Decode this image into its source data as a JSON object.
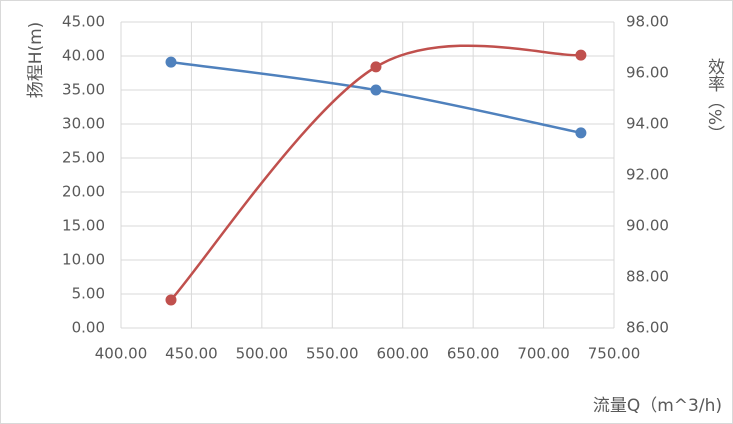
{
  "chart_data": {
    "type": "scatter",
    "xlabel": "流量Q（m^3/h)",
    "ylabel": "扬程H(m)",
    "y2label": "效率（%）",
    "xlim": [
      400,
      750
    ],
    "xticks": [
      {
        "value": 400,
        "label": "400.00"
      },
      {
        "value": 450,
        "label": "450.00"
      },
      {
        "value": 500,
        "label": "500.00"
      },
      {
        "value": 550,
        "label": "550.00"
      },
      {
        "value": 600,
        "label": "600.00"
      },
      {
        "value": 650,
        "label": "650.00"
      },
      {
        "value": 700,
        "label": "700.00"
      },
      {
        "value": 750,
        "label": "750.00"
      }
    ],
    "ylim": [
      0,
      45
    ],
    "yticks": [
      {
        "value": 0,
        "label": "0.00"
      },
      {
        "value": 5,
        "label": "5.00"
      },
      {
        "value": 10,
        "label": "10.00"
      },
      {
        "value": 15,
        "label": "15.00"
      },
      {
        "value": 20,
        "label": "20.00"
      },
      {
        "value": 25,
        "label": "25.00"
      },
      {
        "value": 30,
        "label": "30.00"
      },
      {
        "value": 35,
        "label": "35.00"
      },
      {
        "value": 40,
        "label": "40.00"
      },
      {
        "value": 45,
        "label": "45.00"
      }
    ],
    "y2lim": [
      86,
      98
    ],
    "y2ticks": [
      {
        "value": 86,
        "label": "86.00"
      },
      {
        "value": 88,
        "label": "88.00"
      },
      {
        "value": 90,
        "label": "90.00"
      },
      {
        "value": 92,
        "label": "92.00"
      },
      {
        "value": 94,
        "label": "94.00"
      },
      {
        "value": 96,
        "label": "96.00"
      },
      {
        "value": 98,
        "label": "98.00"
      }
    ],
    "grid": true,
    "smooth": true,
    "series": [
      {
        "color": "#4f81bd",
        "x": [
          435.5,
          581,
          726.5
        ],
        "values": [
          39.1,
          35.0,
          28.7
        ]
      },
      {
        "color": "#c0504d",
        "axis": "y2",
        "x": [
          435.5,
          581,
          726.5
        ],
        "values": [
          87.1,
          96.24,
          96.7
        ]
      }
    ]
  }
}
